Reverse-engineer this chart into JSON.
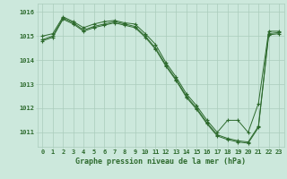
{
  "series1": {
    "x": [
      0,
      1,
      2,
      3,
      4,
      5,
      6,
      7,
      8,
      9,
      10,
      11,
      12,
      13,
      14,
      15,
      16,
      17,
      18,
      19,
      20,
      21,
      22,
      23
    ],
    "y": [
      1015.0,
      1015.1,
      1015.8,
      1015.6,
      1015.35,
      1015.5,
      1015.6,
      1015.65,
      1015.55,
      1015.5,
      1015.1,
      1014.65,
      1013.9,
      1013.3,
      1012.6,
      1012.1,
      1011.5,
      1011.0,
      1011.5,
      1011.5,
      1011.0,
      1012.2,
      1015.2,
      1015.2
    ]
  },
  "series2": {
    "x": [
      0,
      1,
      2,
      3,
      4,
      5,
      6,
      7,
      8,
      9,
      10,
      11,
      12,
      13,
      14,
      15,
      16,
      17,
      18,
      19,
      20,
      21,
      22,
      23
    ],
    "y": [
      1014.85,
      1015.0,
      1015.75,
      1015.55,
      1015.25,
      1015.4,
      1015.5,
      1015.6,
      1015.5,
      1015.4,
      1015.0,
      1014.5,
      1013.8,
      1013.2,
      1012.5,
      1012.0,
      1011.4,
      1010.9,
      1010.75,
      1010.65,
      1010.6,
      1011.25,
      1015.1,
      1015.15
    ]
  },
  "series3": {
    "x": [
      0,
      1,
      2,
      3,
      4,
      5,
      6,
      7,
      8,
      9,
      10,
      11,
      12,
      13,
      14,
      15,
      16,
      17,
      18,
      19,
      20,
      21,
      22,
      23
    ],
    "y": [
      1014.8,
      1014.95,
      1015.7,
      1015.5,
      1015.2,
      1015.35,
      1015.45,
      1015.55,
      1015.45,
      1015.35,
      1014.95,
      1014.45,
      1013.75,
      1013.15,
      1012.45,
      1011.95,
      1011.35,
      1010.85,
      1010.7,
      1010.6,
      1010.55,
      1011.2,
      1015.05,
      1015.1
    ]
  },
  "line_color": "#2d6a2d",
  "bg_color": "#cce8dc",
  "label_bg_color": "#c0ddd0",
  "grid_color": "#aaccbc",
  "xlabel": "Graphe pression niveau de la mer (hPa)",
  "ylim": [
    1010.4,
    1016.35
  ],
  "yticks": [
    1011,
    1012,
    1013,
    1014,
    1015,
    1016
  ],
  "xticks": [
    0,
    1,
    2,
    3,
    4,
    5,
    6,
    7,
    8,
    9,
    10,
    11,
    12,
    13,
    14,
    15,
    16,
    17,
    18,
    19,
    20,
    21,
    22,
    23
  ],
  "xlabel_fontsize": 6.0,
  "tick_fontsize": 5.0
}
